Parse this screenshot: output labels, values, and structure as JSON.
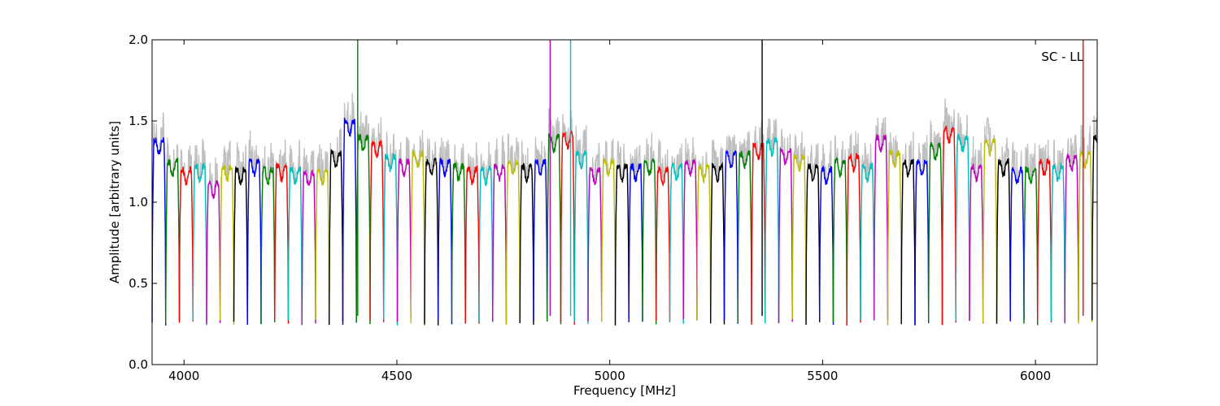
{
  "chart_data": {
    "type": "line",
    "title": "",
    "annotation": "SC - LL",
    "xlabel": "Frequency [MHz]",
    "ylabel": "Amplitude [arbitrary units]",
    "xlim": [
      3925,
      6145
    ],
    "ylim": [
      0.0,
      2.0
    ],
    "x_ticks": [
      4000,
      4500,
      5000,
      5500,
      6000
    ],
    "x_tick_labels": [
      "4000",
      "4500",
      "5000",
      "5500",
      "6000"
    ],
    "y_ticks": [
      0.0,
      0.5,
      1.0,
      1.5,
      2.0
    ],
    "y_tick_labels": [
      "0.0",
      "0.5",
      "1.0",
      "1.5",
      "2.0"
    ],
    "grid": false,
    "legend": "none",
    "channel_width_mhz": 32,
    "band_start_mhz": 3925,
    "color_cycle": [
      "#0000ff",
      "#008000",
      "#ff0000",
      "#00bfbf",
      "#bf00bf",
      "#bfbf00",
      "#000000"
    ],
    "background_trace_color": "#bfbfbf",
    "channel_peak_levels": [
      1.38,
      1.25,
      1.2,
      1.22,
      1.12,
      1.22,
      1.2,
      1.25,
      1.2,
      1.22,
      1.2,
      1.18,
      1.2,
      1.3,
      1.5,
      1.4,
      1.36,
      1.28,
      1.25,
      1.3,
      1.25,
      1.25,
      1.22,
      1.2,
      1.2,
      1.22,
      1.25,
      1.22,
      1.25,
      1.4,
      1.42,
      1.3,
      1.2,
      1.25,
      1.22,
      1.22,
      1.25,
      1.2,
      1.22,
      1.25,
      1.22,
      1.22,
      1.3,
      1.3,
      1.35,
      1.38,
      1.32,
      1.28,
      1.22,
      1.2,
      1.25,
      1.28,
      1.22,
      1.4,
      1.3,
      1.25,
      1.25,
      1.35,
      1.45,
      1.4,
      1.22,
      1.38,
      1.25,
      1.2,
      1.2,
      1.25,
      1.22,
      1.28,
      1.3,
      1.4
    ],
    "spikes": [
      {
        "x": 4408,
        "y": 2.0,
        "color": "#008000"
      },
      {
        "x": 4860,
        "y": 2.0,
        "color": "#bf00bf"
      },
      {
        "x": 4908,
        "y": 2.0,
        "color": "#00bfbf"
      },
      {
        "x": 5358,
        "y": 2.0,
        "color": "#000000"
      },
      {
        "x": 6112,
        "y": 2.0,
        "color": "#ff0000"
      }
    ]
  }
}
